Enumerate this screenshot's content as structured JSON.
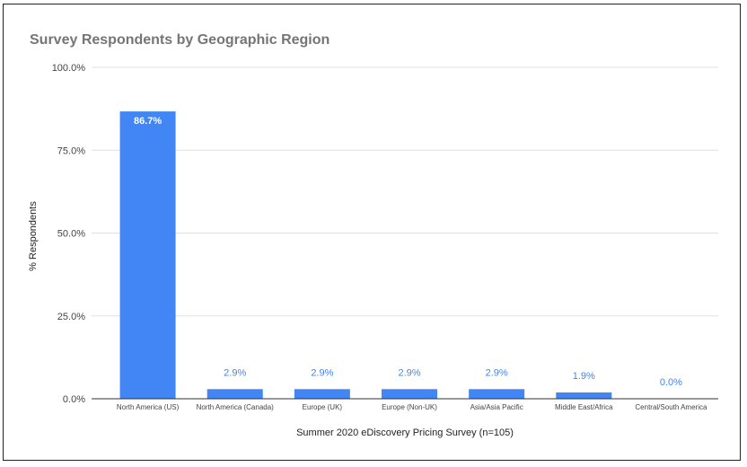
{
  "chart_data": {
    "type": "bar",
    "title": "Survey Respondents by Geographic Region",
    "xlabel": "Summer 2020 eDiscovery Pricing Survey (n=105)",
    "ylabel": "% Respondents",
    "categories": [
      "North America (US)",
      "North America (Canada)",
      "Europe (UK)",
      "Europe (Non-UK)",
      "Asia/Asia Pacific",
      "Middle East/Africa",
      "Central/South America"
    ],
    "values": [
      86.7,
      2.9,
      2.9,
      2.9,
      2.9,
      1.9,
      0.0
    ],
    "data_labels": [
      "86.7%",
      "2.9%",
      "2.9%",
      "2.9%",
      "2.9%",
      "1.9%",
      "0.0%"
    ],
    "ylim": [
      0,
      100
    ],
    "yticks": [
      0,
      25,
      50,
      75,
      100
    ],
    "ytick_labels": [
      "0.0%",
      "25.0%",
      "50.0%",
      "75.0%",
      "100.0%"
    ],
    "grid": true,
    "legend": "none",
    "colors": {
      "bar": "#4285f4",
      "label_inside": "#ffffff",
      "label_outside": "#4285f4",
      "grid": "#e0e0e0",
      "axis": "#333333"
    }
  }
}
